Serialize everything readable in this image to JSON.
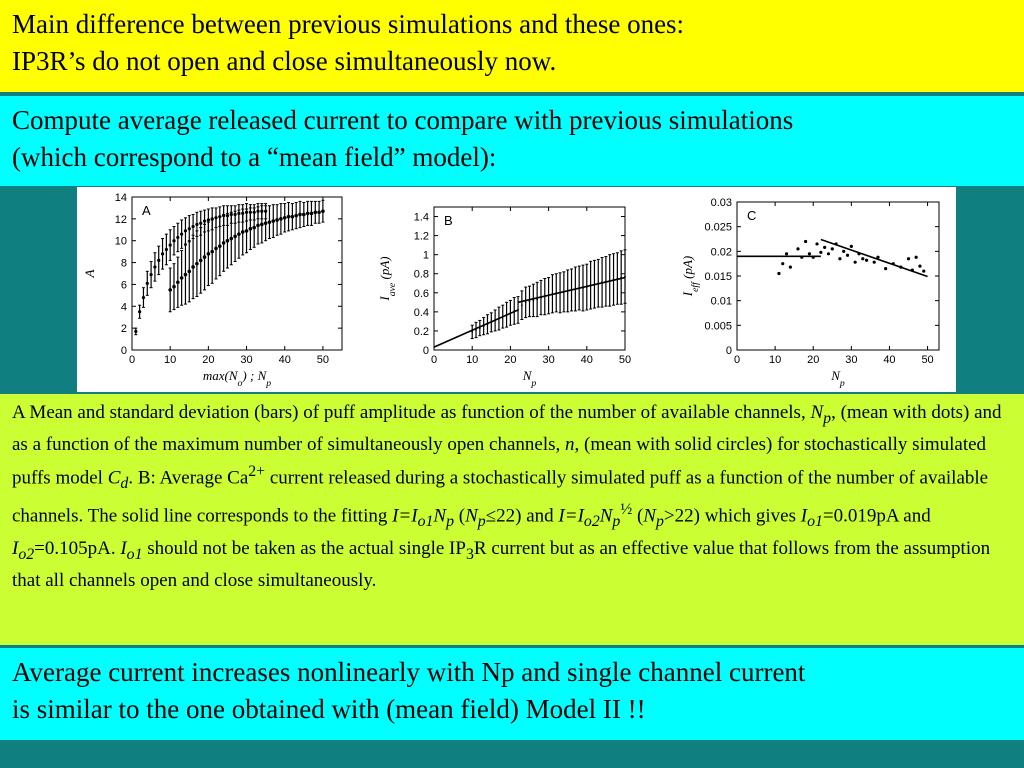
{
  "header": {
    "line1": "Main difference between previous simulations and these ones:",
    "line2": "IP3R’s do not open and close simultaneously now."
  },
  "compute": {
    "line1": "Compute average released current to compare with previous simulations",
    "line2": "(which correspond to a “mean field” model):"
  },
  "caption": {
    "p1": "A Mean and standard deviation (bars) of puff amplitude as function of the number of available channels, ",
    "Np": "N",
    "Np_sub": "p",
    "p2": ", (mean with dots) and as a function of the maximum number of simultaneously open channels, ",
    "n": "n",
    "p3": ", (mean with solid circles) for stochastically simulated puffs model ",
    "Cd": "C",
    "Cd_sub": "d",
    "p4": ".   B: Average Ca",
    "ca_sup": "2+",
    "p5": " current released during a stochastically simulated puff as a function of the number of available channels. The solid line corresponds to the fitting ",
    "f1": "I=I",
    "f1_sub": "o1",
    "f1b": "N",
    "f1b_sub": "p",
    "c1": " (",
    "c1b": "N",
    "c1b_sub": "p",
    "c1c": "≤22) and ",
    "f2": "I=I",
    "f2_sub": "o2",
    "f2b": "N",
    "f2b_sub": "p",
    "f2_sup": "½",
    "c2": " (",
    "c2b": "N",
    "c2b_sub": "p",
    "c2c": ">22) which gives ",
    "g1": "I",
    "g1_sub": "o1",
    "g1v": "=0.019pA and ",
    "g2": "I",
    "g2_sub": "o2",
    "g2v": "=0.105pA. ",
    "g3": "I",
    "g3_sub": "o1",
    "p6": " should not be taken as the actual single IP",
    "ip3_sub": "3",
    "p7": "R current but as an effective value that follows from the assumption that all channels open and close simultaneously."
  },
  "conclusion": {
    "line1": "Average current increases nonlinearly with Np and single channel current",
    "line2": "is similar to the one obtained with (mean field) Model II  !!"
  },
  "chart_data": [
    {
      "type": "scatter",
      "panel_label": "A",
      "xlabel": "max(N_o) ; N_p",
      "ylabel": "A",
      "xlim": [
        0,
        55
      ],
      "ylim": [
        0,
        14
      ],
      "xticks": [
        0,
        10,
        20,
        30,
        40,
        50
      ],
      "yticks": [
        0,
        2,
        4,
        6,
        8,
        10,
        12,
        14
      ],
      "series": [
        {
          "marker": "dots",
          "x": [
            1,
            2,
            3,
            4,
            5,
            6,
            7,
            8,
            9,
            10,
            11,
            12,
            13,
            14,
            15,
            16,
            17,
            18,
            19,
            20,
            21,
            22,
            23,
            24,
            25,
            26,
            27,
            28,
            29,
            30,
            31,
            32,
            33,
            34,
            35
          ],
          "y": [
            1.7,
            3.5,
            4.8,
            6.1,
            6.9,
            7.6,
            8.2,
            8.8,
            9.2,
            9.6,
            10.0,
            10.3,
            10.6,
            10.9,
            11.1,
            11.3,
            11.5,
            11.6,
            11.8,
            11.9,
            12.0,
            12.1,
            12.2,
            12.3,
            12.3,
            12.4,
            12.4,
            12.5,
            12.5,
            12.6,
            12.6,
            12.6,
            12.7,
            12.7,
            12.7
          ],
          "err": [
            0.3,
            0.6,
            0.9,
            1.1,
            1.2,
            1.3,
            1.3,
            1.4,
            1.4,
            1.4,
            1.3,
            1.3,
            1.3,
            1.2,
            1.2,
            1.1,
            1.1,
            1.1,
            1.0,
            1.0,
            1.0,
            0.9,
            0.9,
            0.9,
            0.9,
            0.8,
            0.8,
            0.8,
            0.8,
            0.8,
            0.7,
            0.7,
            0.7,
            0.7,
            0.7
          ]
        },
        {
          "marker": "solid circles",
          "x": [
            10,
            11,
            12,
            13,
            14,
            15,
            16,
            17,
            18,
            19,
            20,
            21,
            22,
            23,
            24,
            25,
            26,
            27,
            28,
            29,
            30,
            31,
            32,
            33,
            34,
            35,
            36,
            37,
            38,
            39,
            40,
            41,
            42,
            43,
            44,
            45,
            46,
            47,
            48,
            49,
            50
          ],
          "y": [
            5.5,
            5.8,
            6.2,
            6.6,
            6.9,
            7.2,
            7.6,
            7.9,
            8.2,
            8.5,
            8.8,
            9.0,
            9.3,
            9.5,
            9.8,
            10.0,
            10.2,
            10.4,
            10.6,
            10.8,
            10.9,
            11.1,
            11.2,
            11.4,
            11.5,
            11.6,
            11.7,
            11.8,
            11.9,
            12.0,
            12.1,
            12.2,
            12.2,
            12.3,
            12.4,
            12.4,
            12.5,
            12.5,
            12.6,
            12.6,
            12.7
          ],
          "err": [
            2.0,
            2.1,
            2.3,
            2.5,
            2.7,
            2.8,
            2.9,
            3.0,
            3.0,
            3.0,
            2.9,
            2.9,
            2.8,
            2.7,
            2.6,
            2.5,
            2.4,
            2.3,
            2.2,
            2.1,
            2.0,
            1.9,
            1.8,
            1.7,
            1.7,
            1.6,
            1.5,
            1.5,
            1.4,
            1.4,
            1.3,
            1.3,
            1.2,
            1.2,
            1.2,
            1.1,
            1.1,
            1.1,
            1.0,
            1.0,
            1.0
          ]
        }
      ]
    },
    {
      "type": "scatter",
      "panel_label": "B",
      "xlabel": "N_p",
      "ylabel": "I_ave (pA)",
      "xlim": [
        0,
        50
      ],
      "ylim": [
        0,
        1.5
      ],
      "xticks": [
        0,
        10,
        20,
        30,
        40,
        50
      ],
      "yticks": [
        0,
        0.2,
        0.4,
        0.6,
        0.8,
        1,
        1.2,
        1.4
      ],
      "series": [
        {
          "marker": "error bars",
          "x": [
            10,
            11,
            12,
            13,
            14,
            15,
            16,
            17,
            18,
            19,
            20,
            21,
            22,
            23,
            24,
            25,
            26,
            27,
            28,
            29,
            30,
            31,
            32,
            33,
            34,
            35,
            36,
            37,
            38,
            39,
            40,
            41,
            42,
            43,
            44,
            45,
            46,
            47,
            48,
            49,
            50
          ],
          "y": [
            0.19,
            0.21,
            0.23,
            0.25,
            0.27,
            0.29,
            0.31,
            0.33,
            0.35,
            0.37,
            0.39,
            0.41,
            0.42,
            0.47,
            0.5,
            0.51,
            0.52,
            0.53,
            0.55,
            0.56,
            0.57,
            0.59,
            0.6,
            0.6,
            0.61,
            0.62,
            0.63,
            0.64,
            0.65,
            0.65,
            0.66,
            0.68,
            0.69,
            0.7,
            0.71,
            0.72,
            0.73,
            0.74,
            0.75,
            0.76,
            0.77
          ],
          "err": [
            0.07,
            0.08,
            0.08,
            0.09,
            0.1,
            0.1,
            0.11,
            0.12,
            0.12,
            0.13,
            0.13,
            0.14,
            0.14,
            0.15,
            0.16,
            0.16,
            0.17,
            0.18,
            0.18,
            0.19,
            0.19,
            0.2,
            0.2,
            0.21,
            0.21,
            0.22,
            0.22,
            0.23,
            0.23,
            0.24,
            0.24,
            0.25,
            0.25,
            0.25,
            0.26,
            0.26,
            0.27,
            0.27,
            0.27,
            0.28,
            0.28
          ]
        }
      ],
      "fit_segments": [
        {
          "x": [
            0,
            22
          ],
          "y": [
            0.03,
            0.42
          ]
        },
        {
          "x": [
            22,
            50
          ],
          "y": [
            0.5,
            0.76
          ]
        }
      ]
    },
    {
      "type": "scatter",
      "panel_label": "C",
      "xlabel": "N_p",
      "ylabel": "I_eff (pA)",
      "xlim": [
        0,
        53
      ],
      "ylim": [
        0,
        0.03
      ],
      "xticks": [
        0,
        10,
        20,
        30,
        40,
        50
      ],
      "yticks": [
        0,
        0.005,
        0.01,
        0.015,
        0.02,
        0.025,
        0.03
      ],
      "series": [
        {
          "marker": "dots",
          "x": [
            11,
            12,
            13,
            14,
            16,
            17,
            18,
            19,
            20,
            21,
            22,
            23,
            24,
            25,
            26,
            27,
            28,
            29,
            30,
            31,
            32,
            33,
            34,
            36,
            37,
            39,
            41,
            43,
            45,
            46,
            47,
            48,
            49
          ],
          "y": [
            0.0155,
            0.0175,
            0.0195,
            0.0168,
            0.0205,
            0.0188,
            0.022,
            0.0195,
            0.0188,
            0.0215,
            0.0198,
            0.0208,
            0.0195,
            0.0205,
            0.0215,
            0.0185,
            0.02,
            0.0192,
            0.021,
            0.0178,
            0.0195,
            0.0185,
            0.0182,
            0.0178,
            0.0188,
            0.0165,
            0.0175,
            0.0168,
            0.0185,
            0.0162,
            0.0188,
            0.017,
            0.016
          ]
        }
      ],
      "fit_segments": [
        {
          "x": [
            0,
            22
          ],
          "y": [
            0.019,
            0.019
          ]
        },
        {
          "x": [
            22,
            50
          ],
          "y": [
            0.0224,
            0.0149
          ]
        }
      ]
    }
  ]
}
